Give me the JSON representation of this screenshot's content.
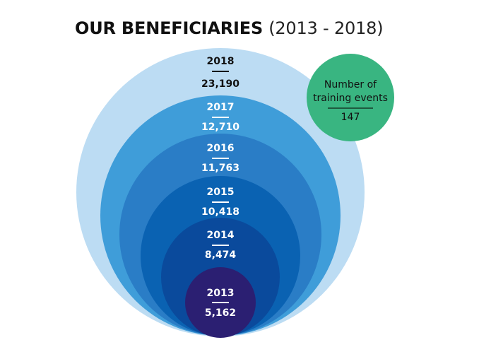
{
  "title": {
    "main": "OUR BENEFICIARIES",
    "range": "(2013 - 2018)"
  },
  "chart_data": {
    "type": "nested-bubble",
    "series": [
      {
        "year": "2013",
        "value": 5162,
        "label": "5,162",
        "color": "#2b1f72"
      },
      {
        "year": "2014",
        "value": 8474,
        "label": "8,474",
        "color": "#0a4a9c"
      },
      {
        "year": "2015",
        "value": 10418,
        "label": "10,418",
        "color": "#0a62b2"
      },
      {
        "year": "2016",
        "value": 11763,
        "label": "11,763",
        "color": "#2a7dc6"
      },
      {
        "year": "2017",
        "value": 12710,
        "label": "12,710",
        "color": "#3f9dd9"
      },
      {
        "year": "2018",
        "value": 23190,
        "label": "23,190",
        "color": "#bcdcf3",
        "text_color": "#111111"
      }
    ],
    "callout": {
      "label_line1": "Number of",
      "label_line2": "training events",
      "value": "147",
      "color": "#39b581"
    }
  }
}
